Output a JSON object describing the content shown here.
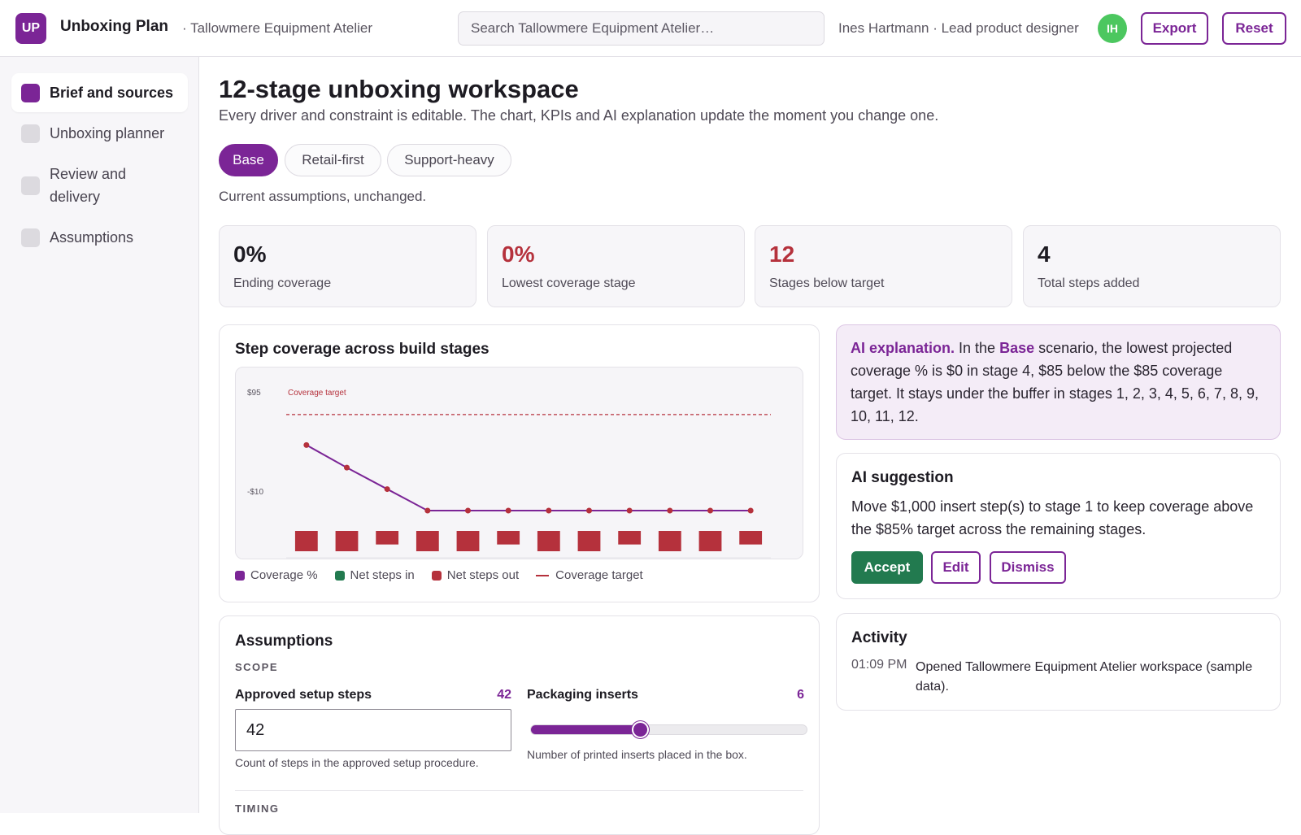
{
  "header": {
    "logo": "UP",
    "app_name": "Unboxing Plan",
    "org_name": "· Tallowmere Equipment Atelier",
    "search_placeholder": "Search Tallowmere Equipment Atelier…",
    "user": "Ines Hartmann · Lead product designer",
    "avatar": "IH",
    "export_label": "Export",
    "reset_label": "Reset"
  },
  "sidebar": {
    "items": [
      {
        "label": "Brief and sources",
        "active": true
      },
      {
        "label": "Unboxing planner",
        "active": false
      },
      {
        "label": "Review and delivery",
        "active": false
      },
      {
        "label": "Assumptions",
        "active": false
      }
    ]
  },
  "main": {
    "title": "12-stage unboxing workspace",
    "subtitle": "Every driver and constraint is editable. The chart, KPIs and AI explanation update the moment you change one.",
    "scenarios": [
      "Base",
      "Retail-first",
      "Support-heavy"
    ],
    "active_scenario": "Base",
    "scenario_note": "Current assumptions, unchanged."
  },
  "kpis": [
    {
      "value": "0%",
      "label": "Ending coverage",
      "color": "#1d1b22"
    },
    {
      "value": "0%",
      "label": "Lowest coverage stage",
      "color": "#b5313c"
    },
    {
      "value": "12",
      "label": "Stages below target",
      "color": "#b5313c"
    },
    {
      "value": "4",
      "label": "Total steps added",
      "color": "#1d1b22"
    }
  ],
  "chart": {
    "title": "Step coverage across build stages",
    "y_tick_top": "$95",
    "y_tick_mid": "-$10",
    "target_label": "Coverage target",
    "legend": [
      {
        "label": "Coverage %",
        "color": "#7b2596",
        "kind": "square"
      },
      {
        "label": "Net steps in",
        "color": "#227a4f",
        "kind": "square"
      },
      {
        "label": "Net steps out",
        "color": "#b5313c",
        "kind": "square"
      },
      {
        "label": "Coverage target",
        "color": "#b5313c",
        "kind": "line"
      }
    ]
  },
  "chart_data": {
    "type": "line",
    "x": [
      1,
      2,
      3,
      4,
      5,
      6,
      7,
      8,
      9,
      10,
      11,
      12
    ],
    "series": [
      {
        "name": "Coverage %",
        "values": [
          58,
          38,
          19,
          0,
          0,
          0,
          0,
          0,
          0,
          0,
          0,
          0
        ],
        "color": "#7b2596"
      },
      {
        "name": "Net steps out",
        "values": [
          -24,
          -24,
          -16,
          -24,
          -24,
          -16,
          -24,
          -24,
          -16,
          -24,
          -24,
          -16
        ],
        "color": "#b5313c"
      }
    ],
    "target": 85,
    "ylim": [
      -36,
      100
    ],
    "y_ticks": [
      "$95",
      "-$10"
    ],
    "legend": [
      "Coverage %",
      "Net steps in",
      "Net steps out",
      "Coverage target"
    ],
    "legend_position": "bottom-left",
    "grid": false
  },
  "assumptions": {
    "title": "Assumptions",
    "scope_label": "SCOPE",
    "timing_label": "TIMING",
    "setup_steps": {
      "label": "Approved setup steps",
      "value": "42",
      "help": "Count of steps in the approved setup procedure."
    },
    "inserts": {
      "label": "Packaging inserts",
      "value": "6",
      "help": "Number of printed inserts placed in the box.",
      "level": 0.4
    }
  },
  "ai_explanation": {
    "lead": "AI explanation.",
    "part1": " In the ",
    "scenario": "Base",
    "part2": " scenario, the lowest projected coverage % is $0 in stage 4, $85 below the $85 coverage target. It stays under the buffer in stages 1, 2, 3, 4, 5, 6, 7, 8, 9, 10, 11, 12."
  },
  "ai_suggestion": {
    "title": "AI suggestion",
    "text": "Move $1,000 insert step(s) to stage 1 to keep coverage above the $85% target across the remaining stages.",
    "accept": "Accept",
    "edit": "Edit",
    "dismiss": "Dismiss"
  },
  "activity": {
    "title": "Activity",
    "entries": [
      {
        "time": "01:09 PM",
        "text": "Opened Tallowmere Equipment Atelier workspace (sample data)."
      }
    ]
  }
}
